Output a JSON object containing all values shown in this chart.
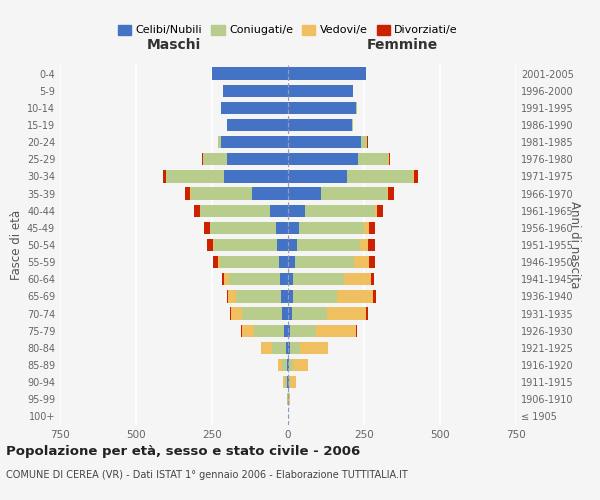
{
  "age_groups": [
    "100+",
    "95-99",
    "90-94",
    "85-89",
    "80-84",
    "75-79",
    "70-74",
    "65-69",
    "60-64",
    "55-59",
    "50-54",
    "45-49",
    "40-44",
    "35-39",
    "30-34",
    "25-29",
    "20-24",
    "15-19",
    "10-14",
    "5-9",
    "0-4"
  ],
  "birth_years": [
    "≤ 1905",
    "1906-1910",
    "1911-1915",
    "1916-1920",
    "1921-1925",
    "1926-1930",
    "1931-1935",
    "1936-1940",
    "1941-1945",
    "1946-1950",
    "1951-1955",
    "1956-1960",
    "1961-1965",
    "1966-1970",
    "1971-1975",
    "1976-1980",
    "1981-1985",
    "1986-1990",
    "1991-1995",
    "1996-2000",
    "2001-2005"
  ],
  "maschi_celibi": [
    0,
    1,
    2,
    4,
    8,
    12,
    20,
    22,
    25,
    30,
    35,
    40,
    60,
    120,
    210,
    200,
    220,
    200,
    220,
    215,
    250
  ],
  "maschi_coniugati": [
    0,
    2,
    8,
    15,
    45,
    100,
    130,
    150,
    170,
    195,
    210,
    215,
    230,
    200,
    190,
    80,
    10,
    2,
    1,
    0,
    0
  ],
  "maschi_vedovi": [
    0,
    1,
    5,
    15,
    35,
    40,
    38,
    25,
    15,
    5,
    3,
    2,
    1,
    1,
    0,
    0,
    0,
    0,
    0,
    0,
    0
  ],
  "maschi_divorziati": [
    0,
    0,
    0,
    0,
    0,
    2,
    4,
    5,
    8,
    18,
    18,
    20,
    18,
    18,
    12,
    3,
    1,
    0,
    0,
    0,
    0
  ],
  "femmine_celibi": [
    0,
    1,
    2,
    3,
    5,
    8,
    12,
    15,
    18,
    22,
    28,
    35,
    55,
    110,
    195,
    230,
    240,
    210,
    225,
    215,
    255
  ],
  "femmine_coniugati": [
    0,
    2,
    5,
    12,
    35,
    85,
    115,
    145,
    165,
    195,
    210,
    215,
    230,
    215,
    215,
    100,
    20,
    3,
    1,
    0,
    0
  ],
  "femmine_vedovi": [
    1,
    5,
    20,
    50,
    90,
    130,
    130,
    120,
    90,
    50,
    25,
    15,
    8,
    5,
    3,
    2,
    1,
    0,
    0,
    0,
    0
  ],
  "femmine_divorziati": [
    0,
    0,
    0,
    1,
    2,
    3,
    5,
    8,
    10,
    20,
    22,
    20,
    20,
    20,
    15,
    5,
    2,
    0,
    0,
    0,
    0
  ],
  "color_celibi": "#4472c4",
  "color_coniugati": "#b8cc8c",
  "color_vedovi": "#f0c060",
  "color_divorziati": "#cc2200",
  "xlim": 750,
  "title": "Popolazione per età, sesso e stato civile - 2006",
  "subtitle": "COMUNE DI CEREA (VR) - Dati ISTAT 1° gennaio 2006 - Elaborazione TUTTITALIA.IT",
  "ylabel_left": "Fasce di età",
  "ylabel_right": "Anni di nascita",
  "xlabel_maschi": "Maschi",
  "xlabel_femmine": "Femmine",
  "legend_labels": [
    "Celibi/Nubili",
    "Coniugati/e",
    "Vedovi/e",
    "Divorziati/e"
  ],
  "bg_color": "#f5f5f5"
}
